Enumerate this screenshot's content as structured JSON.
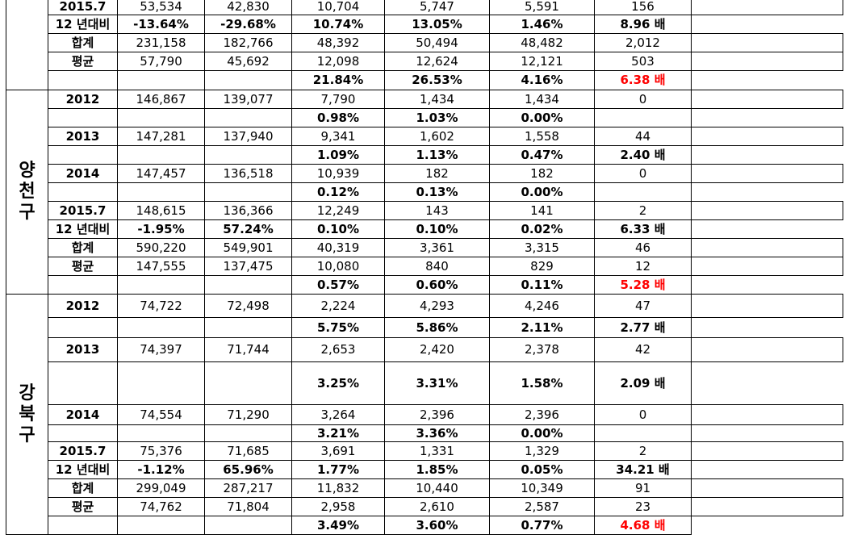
{
  "colors": {
    "text": "#000000",
    "highlight": "#ff0000",
    "border": "#000000"
  },
  "rows": [
    [
      "",
      "2015.7",
      "53,534",
      "42,830",
      "10,704",
      "5,747",
      "5,591",
      "156",
      ""
    ],
    [
      "",
      "12 년대비",
      "-13.64%",
      "-29.68%",
      "10.74%",
      "13.05%",
      "1.46%",
      "8.96 배"
    ],
    [
      "",
      "합계",
      "231,158",
      "182,766",
      "48,392",
      "50,494",
      "48,482",
      "2,012",
      ""
    ],
    [
      "",
      "평균",
      "57,790",
      "45,692",
      "12,098",
      "12,624",
      "12,121",
      "503",
      ""
    ],
    [
      "",
      "",
      "",
      "",
      "21.84%",
      "26.53%",
      "4.16%",
      "6.38 배"
    ],
    [
      "양천구",
      "2012",
      "146,867",
      "139,077",
      "7,790",
      "1,434",
      "1,434",
      "0",
      ""
    ],
    [
      "",
      "",
      "",
      "",
      "0.98%",
      "1.03%",
      "0.00%",
      ""
    ],
    [
      "",
      "2013",
      "147,281",
      "137,940",
      "9,341",
      "1,602",
      "1,558",
      "44",
      ""
    ],
    [
      "",
      "",
      "",
      "",
      "1.09%",
      "1.13%",
      "0.47%",
      "2.40 배"
    ],
    [
      "",
      "2014",
      "147,457",
      "136,518",
      "10,939",
      "182",
      "182",
      "0",
      ""
    ],
    [
      "",
      "",
      "",
      "",
      "0.12%",
      "0.13%",
      "0.00%",
      ""
    ],
    [
      "",
      "2015.7",
      "148,615",
      "136,366",
      "12,249",
      "143",
      "141",
      "2",
      ""
    ],
    [
      "",
      "12 년대비",
      "-1.95%",
      "57.24%",
      "0.10%",
      "0.10%",
      "0.02%",
      "6.33 배"
    ],
    [
      "",
      "합계",
      "590,220",
      "549,901",
      "40,319",
      "3,361",
      "3,315",
      "46",
      ""
    ],
    [
      "",
      "평균",
      "147,555",
      "137,475",
      "10,080",
      "840",
      "829",
      "12",
      ""
    ],
    [
      "",
      "",
      "",
      "",
      "0.57%",
      "0.60%",
      "0.11%",
      "5.28 배"
    ],
    [
      "강북구",
      "2012",
      "74,722",
      "72,498",
      "2,224",
      "4,293",
      "4,246",
      "47",
      ""
    ],
    [
      "",
      "",
      "",
      "",
      "5.75%",
      "5.86%",
      "2.11%",
      "2.77 배"
    ],
    [
      "",
      "2013",
      "74,397",
      "71,744",
      "2,653",
      "2,420",
      "2,378",
      "42",
      ""
    ],
    [
      "",
      "",
      "",
      "",
      "3.25%",
      "3.31%",
      "1.58%",
      "2.09 배"
    ],
    [
      "",
      "2014",
      "74,554",
      "71,290",
      "3,264",
      "2,396",
      "2,396",
      "0",
      ""
    ],
    [
      "",
      "",
      "",
      "",
      "3.21%",
      "3.36%",
      "0.00%",
      ""
    ],
    [
      "",
      "2015.7",
      "75,376",
      "71,685",
      "3,691",
      "1,331",
      "1,329",
      "2",
      ""
    ],
    [
      "",
      "12 년대비",
      "-1.12%",
      "65.96%",
      "1.77%",
      "1.85%",
      "0.05%",
      "34.21 배"
    ],
    [
      "",
      "합계",
      "299,049",
      "287,217",
      "11,832",
      "10,440",
      "10,349",
      "91",
      ""
    ],
    [
      "",
      "평균",
      "74,762",
      "71,804",
      "2,958",
      "2,610",
      "2,587",
      "23",
      ""
    ],
    [
      "",
      "",
      "",
      "",
      "3.49%",
      "3.60%",
      "0.77%",
      "4.68 배"
    ]
  ]
}
